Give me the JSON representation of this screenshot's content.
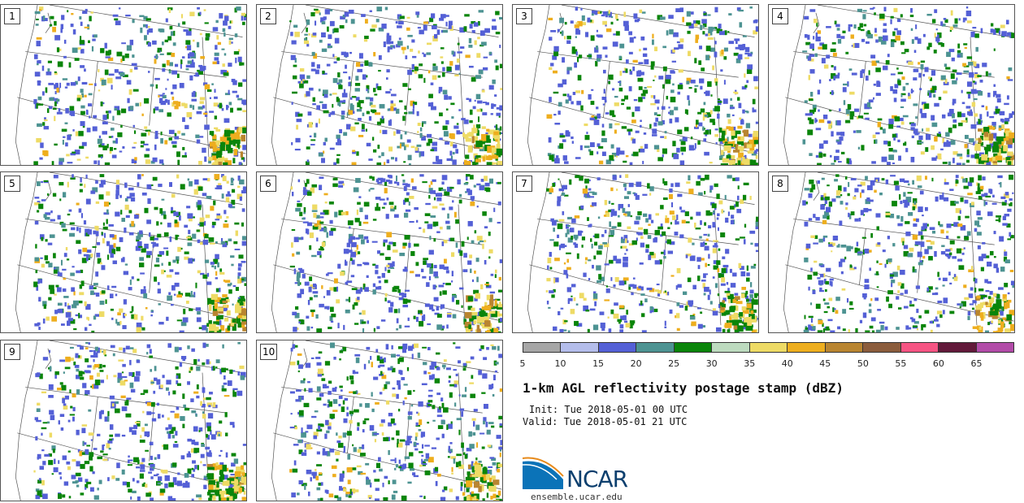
{
  "panels": [
    {
      "label": "1",
      "seed": 11
    },
    {
      "label": "2",
      "seed": 23
    },
    {
      "label": "3",
      "seed": 37
    },
    {
      "label": "4",
      "seed": 41
    },
    {
      "label": "5",
      "seed": 53
    },
    {
      "label": "6",
      "seed": 67
    },
    {
      "label": "7",
      "seed": 71
    },
    {
      "label": "8",
      "seed": 83
    },
    {
      "label": "9",
      "seed": 97
    },
    {
      "label": "10",
      "seed": 101
    }
  ],
  "colorbar": {
    "colors": [
      "#a6a6a6",
      "#b4bdeb",
      "#5460d6",
      "#4d9392",
      "#0a850a",
      "#bddbbf",
      "#eedb65",
      "#eeae1e",
      "#b98530",
      "#8b5c3c",
      "#f65483",
      "#62193a",
      "#b24ba8"
    ],
    "ticks": [
      "5",
      "10",
      "15",
      "20",
      "25",
      "30",
      "35",
      "40",
      "45",
      "50",
      "55",
      "60",
      "65"
    ]
  },
  "title": "1-km AGL reflectivity postage stamp (dBZ)",
  "init": "Init: Tue 2018-05-01 00 UTC",
  "valid": "Valid: Tue 2018-05-01 21 UTC",
  "logo_text": "NCAR",
  "site": "ensemble.ucar.edu"
}
